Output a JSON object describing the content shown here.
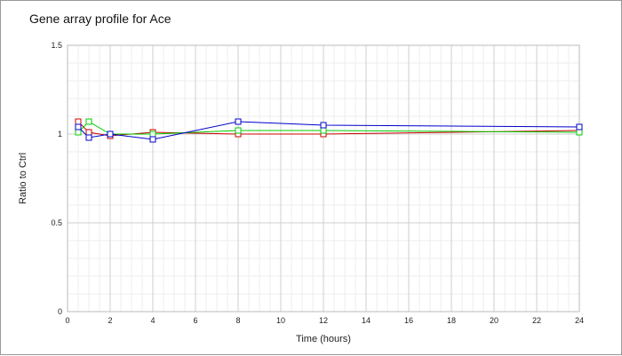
{
  "chart_data": {
    "type": "line",
    "title": "Gene array profile for Ace",
    "xlabel": "Time (hours)",
    "ylabel": "Ratio to Ctrl",
    "xlim": [
      0,
      24
    ],
    "ylim": [
      0,
      1.5
    ],
    "x_ticks": [
      0,
      2,
      4,
      6,
      8,
      10,
      12,
      14,
      16,
      18,
      20,
      22,
      24
    ],
    "y_ticks": [
      0,
      0.5,
      1,
      1.5
    ],
    "y_tick_labels": [
      "0",
      "0.5",
      "1",
      "1.5"
    ],
    "grid": true,
    "marker": "square",
    "series": [
      {
        "color": "#cc0000",
        "x": [
          0.5,
          1,
          2,
          4,
          8,
          12,
          24
        ],
        "y": [
          1.07,
          1.01,
          0.99,
          1.01,
          1.0,
          1.0,
          1.02
        ]
      },
      {
        "color": "#00cc00",
        "x": [
          0.5,
          1,
          2,
          4,
          8,
          12,
          24
        ],
        "y": [
          1.01,
          1.07,
          1.0,
          1.0,
          1.02,
          1.02,
          1.01
        ]
      },
      {
        "color": "#0000cc",
        "x": [
          0.5,
          1,
          2,
          4,
          8,
          12,
          24
        ],
        "y": [
          1.04,
          0.98,
          1.0,
          0.97,
          1.07,
          1.05,
          1.04
        ]
      }
    ]
  }
}
